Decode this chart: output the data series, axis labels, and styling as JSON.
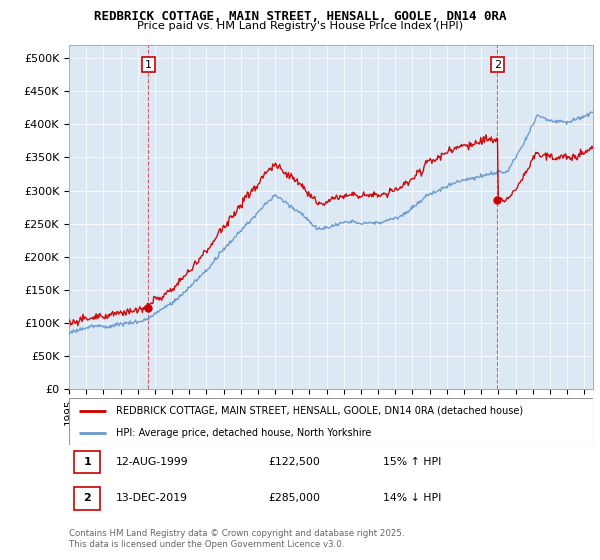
{
  "title": "REDBRICK COTTAGE, MAIN STREET, HENSALL, GOOLE, DN14 0RA",
  "subtitle": "Price paid vs. HM Land Registry's House Price Index (HPI)",
  "property_label": "REDBRICK COTTAGE, MAIN STREET, HENSALL, GOOLE, DN14 0RA (detached house)",
  "hpi_label": "HPI: Average price, detached house, North Yorkshire",
  "annotation1_date": "12-AUG-1999",
  "annotation1_price": "£122,500",
  "annotation1_pct": "15% ↑ HPI",
  "annotation2_date": "13-DEC-2019",
  "annotation2_price": "£285,000",
  "annotation2_pct": "14% ↓ HPI",
  "copyright": "Contains HM Land Registry data © Crown copyright and database right 2025.\nThis data is licensed under the Open Government Licence v3.0.",
  "property_color": "#cc0000",
  "hpi_color": "#6699cc",
  "plot_bg_color": "#dce9f5",
  "ylim": [
    0,
    520000
  ],
  "yticks": [
    0,
    50000,
    100000,
    150000,
    200000,
    250000,
    300000,
    350000,
    400000,
    450000,
    500000
  ],
  "ytick_labels": [
    "£0",
    "£50K",
    "£100K",
    "£150K",
    "£200K",
    "£250K",
    "£300K",
    "£350K",
    "£400K",
    "£450K",
    "£500K"
  ],
  "sale1_x": 1999.617,
  "sale1_y": 122500,
  "sale2_x": 2019.95,
  "sale2_y": 285000,
  "xmin": 1995,
  "xmax": 2025.5
}
